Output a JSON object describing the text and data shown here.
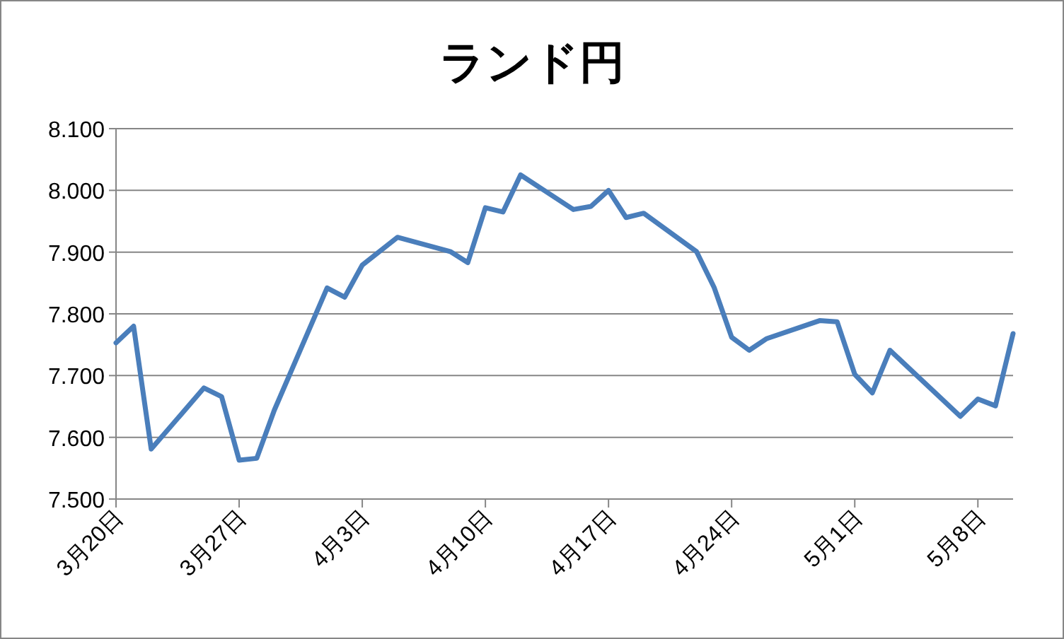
{
  "chart_data": {
    "type": "line",
    "title": "ランド円",
    "x": [
      "--03-20",
      "--03-21",
      "--03-22",
      "--03-25",
      "--03-26",
      "--03-27",
      "--03-28",
      "--03-29",
      "--04-01",
      "--04-02",
      "--04-03",
      "--04-05",
      "--04-08",
      "--04-09",
      "--04-10",
      "--04-11",
      "--04-12",
      "--04-15",
      "--04-16",
      "--04-17",
      "--04-18",
      "--04-19",
      "--04-22",
      "--04-23",
      "--04-24",
      "--04-25",
      "--04-26",
      "--04-29",
      "--04-30",
      "--05-01",
      "--05-02",
      "--05-03",
      "--05-07",
      "--05-08",
      "--05-09",
      "--05-10"
    ],
    "series": [
      {
        "color": "#4a7ebb",
        "values": [
          7.753,
          7.78,
          7.581,
          7.68,
          7.666,
          7.563,
          7.566,
          7.644,
          7.842,
          7.827,
          7.879,
          7.924,
          7.901,
          7.883,
          7.972,
          7.965,
          8.025,
          7.969,
          7.974,
          8.0,
          7.956,
          7.963,
          7.901,
          7.843,
          7.762,
          7.741,
          7.76,
          7.789,
          7.787,
          7.702,
          7.672,
          7.741,
          7.634,
          7.662,
          7.651,
          7.768
        ]
      }
    ],
    "xlim": [
      "--03-20",
      "--05-10"
    ],
    "xticks": [
      {
        "value": "--03-20",
        "label": "3月20日"
      },
      {
        "value": "--03-27",
        "label": "3月27日"
      },
      {
        "value": "--04-03",
        "label": "4月3日"
      },
      {
        "value": "--04-10",
        "label": "4月10日"
      },
      {
        "value": "--04-17",
        "label": "4月17日"
      },
      {
        "value": "--04-24",
        "label": "4月24日"
      },
      {
        "value": "--05-01",
        "label": "5月1日"
      },
      {
        "value": "--05-08",
        "label": "5月8日"
      }
    ],
    "ylim": [
      7.5,
      8.1
    ],
    "yticks": [
      {
        "value": 7.5,
        "label": "7.500"
      },
      {
        "value": 7.6,
        "label": "7.600"
      },
      {
        "value": 7.7,
        "label": "7.700"
      },
      {
        "value": 7.8,
        "label": "7.800"
      },
      {
        "value": 7.9,
        "label": "7.900"
      },
      {
        "value": 8.0,
        "label": "8.000"
      },
      {
        "value": 8.1,
        "label": "8.100"
      }
    ],
    "grid": "y",
    "marker": "none",
    "line_style": "solid"
  }
}
